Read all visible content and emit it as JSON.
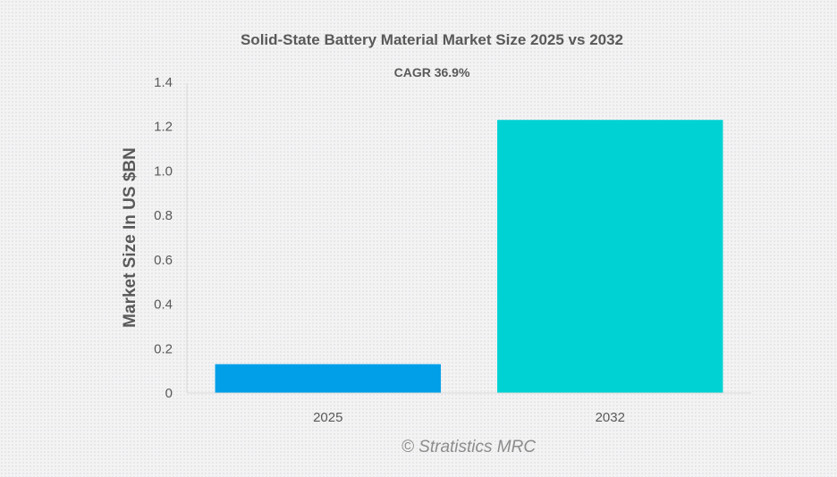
{
  "chart_data": {
    "type": "bar",
    "title": "Solid-State Battery Material Market Size 2025 vs 2032",
    "subtitle": "CAGR 36.9%",
    "xlabel": "",
    "ylabel": "Market Size In US $BN",
    "categories": [
      "2025",
      "2032"
    ],
    "values": [
      0.13,
      1.23
    ],
    "colors": [
      "#009fe8",
      "#00d2d3"
    ],
    "ylim": [
      0,
      1.4
    ],
    "yticks": [
      0,
      0.2,
      0.4,
      0.6,
      0.8,
      1.0,
      1.2,
      1.4
    ],
    "ytick_labels": [
      "0",
      "0.2",
      "0.4",
      "0.6",
      "0.8",
      "1.0",
      "1.2",
      "1.4"
    ],
    "grid": false,
    "legend": "none",
    "watermark": "© Stratistics MRC"
  }
}
